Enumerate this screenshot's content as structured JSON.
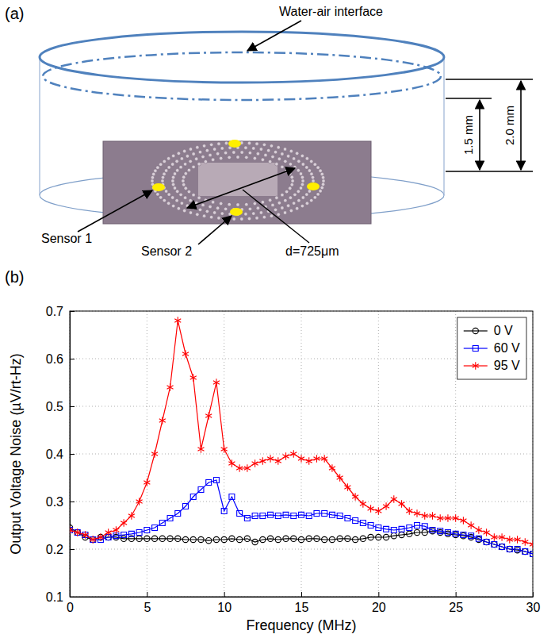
{
  "diagram": {
    "panel": "(a)",
    "labels": {
      "interface": "Water-air interface",
      "sensor1": "Sensor 1",
      "sensor2": "Sensor 2",
      "diameter": "d=725μm",
      "height_water": "1.5 mm",
      "height_dish": "2.0 mm"
    }
  },
  "chart_data": {
    "type": "line",
    "panel": "(b)",
    "x_label": "Frequency (MHz)",
    "y_label": "Output Voltage Noise (µV/rt-Hz)",
    "x": [
      0,
      0.5,
      1,
      1.5,
      2,
      2.5,
      3,
      3.5,
      4,
      4.5,
      5,
      5.5,
      6,
      6.5,
      7,
      7.5,
      8,
      8.5,
      9,
      9.5,
      10,
      10.5,
      11,
      11.5,
      12,
      12.5,
      13,
      13.5,
      14,
      14.5,
      15,
      15.5,
      16,
      16.5,
      17,
      17.5,
      18,
      18.5,
      19,
      19.5,
      20,
      20.5,
      21,
      21.5,
      22,
      22.5,
      23,
      23.5,
      24,
      24.5,
      25,
      25.5,
      26,
      26.5,
      27,
      27.5,
      28,
      28.5,
      29,
      29.5,
      30
    ],
    "series": [
      {
        "name": "0 V",
        "color": "#000000",
        "marker": "circle",
        "line_style": "solid",
        "values": [
          0.245,
          0.235,
          0.225,
          0.22,
          0.225,
          0.225,
          0.225,
          0.222,
          0.222,
          0.222,
          0.222,
          0.222,
          0.222,
          0.222,
          0.222,
          0.22,
          0.22,
          0.22,
          0.218,
          0.22,
          0.22,
          0.222,
          0.22,
          0.222,
          0.215,
          0.22,
          0.222,
          0.22,
          0.222,
          0.222,
          0.22,
          0.222,
          0.222,
          0.22,
          0.22,
          0.222,
          0.222,
          0.22,
          0.222,
          0.225,
          0.225,
          0.225,
          0.228,
          0.23,
          0.232,
          0.235,
          0.235,
          0.238,
          0.235,
          0.232,
          0.23,
          0.228,
          0.225,
          0.22,
          0.215,
          0.21,
          0.205,
          0.2,
          0.198,
          0.195,
          0.19
        ]
      },
      {
        "name": "60 V",
        "color": "#0000ff",
        "marker": "square",
        "line_style": "solid",
        "values": [
          0.24,
          0.235,
          0.23,
          0.22,
          0.22,
          0.225,
          0.228,
          0.23,
          0.232,
          0.235,
          0.24,
          0.245,
          0.255,
          0.265,
          0.275,
          0.29,
          0.31,
          0.325,
          0.34,
          0.345,
          0.28,
          0.31,
          0.275,
          0.265,
          0.27,
          0.27,
          0.272,
          0.27,
          0.272,
          0.27,
          0.272,
          0.27,
          0.275,
          0.275,
          0.272,
          0.27,
          0.265,
          0.26,
          0.255,
          0.25,
          0.245,
          0.242,
          0.24,
          0.242,
          0.245,
          0.25,
          0.248,
          0.24,
          0.238,
          0.235,
          0.232,
          0.23,
          0.228,
          0.222,
          0.215,
          0.21,
          0.205,
          0.2,
          0.2,
          0.195,
          0.19
        ]
      },
      {
        "name": "95 V",
        "color": "#ff0000",
        "marker": "asterisk",
        "line_style": "solid",
        "values": [
          0.24,
          0.235,
          0.23,
          0.22,
          0.225,
          0.235,
          0.24,
          0.255,
          0.27,
          0.3,
          0.34,
          0.4,
          0.47,
          0.54,
          0.68,
          0.61,
          0.56,
          0.41,
          0.48,
          0.55,
          0.41,
          0.38,
          0.37,
          0.37,
          0.38,
          0.385,
          0.39,
          0.385,
          0.395,
          0.4,
          0.39,
          0.385,
          0.39,
          0.39,
          0.37,
          0.35,
          0.33,
          0.31,
          0.295,
          0.285,
          0.28,
          0.29,
          0.305,
          0.295,
          0.28,
          0.275,
          0.27,
          0.27,
          0.265,
          0.265,
          0.265,
          0.26,
          0.25,
          0.24,
          0.235,
          0.225,
          0.225,
          0.22,
          0.22,
          0.215,
          0.21
        ]
      }
    ],
    "xlim": [
      0,
      30
    ],
    "xticks": [
      0,
      5,
      10,
      15,
      20,
      25,
      30
    ],
    "ylim": [
      0.1,
      0.7
    ],
    "yticks": [
      0.1,
      0.2,
      0.3,
      0.4,
      0.5,
      0.6,
      0.7
    ],
    "grid": true,
    "legend": "upper right"
  }
}
